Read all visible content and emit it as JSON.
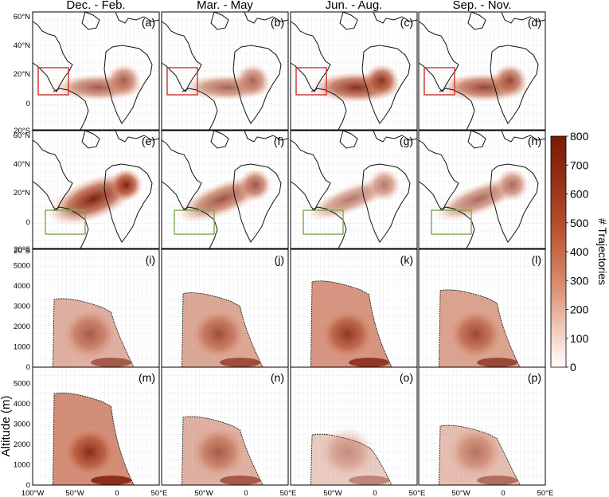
{
  "chart_data": {
    "type": "heatmap",
    "seasons": [
      "Dec. - Feb.",
      "Mar. - May",
      "Jun. - Aug.",
      "Sep. - Nov."
    ],
    "panel_labels": [
      "(a)",
      "(b)",
      "(c)",
      "(d)",
      "(e)",
      "(f)",
      "(g)",
      "(h)",
      "(i)",
      "(j)",
      "(k)",
      "(l)",
      "(m)",
      "(n)",
      "(o)",
      "(p)"
    ],
    "map_lat_ticks": [
      "60°N",
      "40°N",
      "20°N",
      "0",
      "20°S"
    ],
    "map_lon_range": [
      -100,
      50
    ],
    "lon_ticks": [
      "100°W",
      "50°W",
      "0",
      "50°E"
    ],
    "altitude_ticks": [
      0,
      1000,
      2000,
      3000,
      4000,
      5000
    ],
    "ylabel": "Altitude (m)",
    "colorbar": {
      "label": "# Trajectories",
      "range": [
        0,
        800
      ],
      "ticks": [
        0,
        100,
        200,
        300,
        400,
        500,
        600,
        700,
        800
      ],
      "color_low": "#ffffff",
      "color_high": "#7a1a06"
    },
    "box_colors": {
      "row1": "#d0302a",
      "row2": "#7aa84a"
    },
    "intensity": {
      "map_row1": [
        0.55,
        0.5,
        0.85,
        0.7
      ],
      "map_row2": [
        0.95,
        0.6,
        0.35,
        0.45
      ],
      "profile_row3": [
        0.45,
        0.55,
        0.75,
        0.6
      ],
      "profile_row4": [
        0.85,
        0.45,
        0.15,
        0.3
      ]
    }
  }
}
